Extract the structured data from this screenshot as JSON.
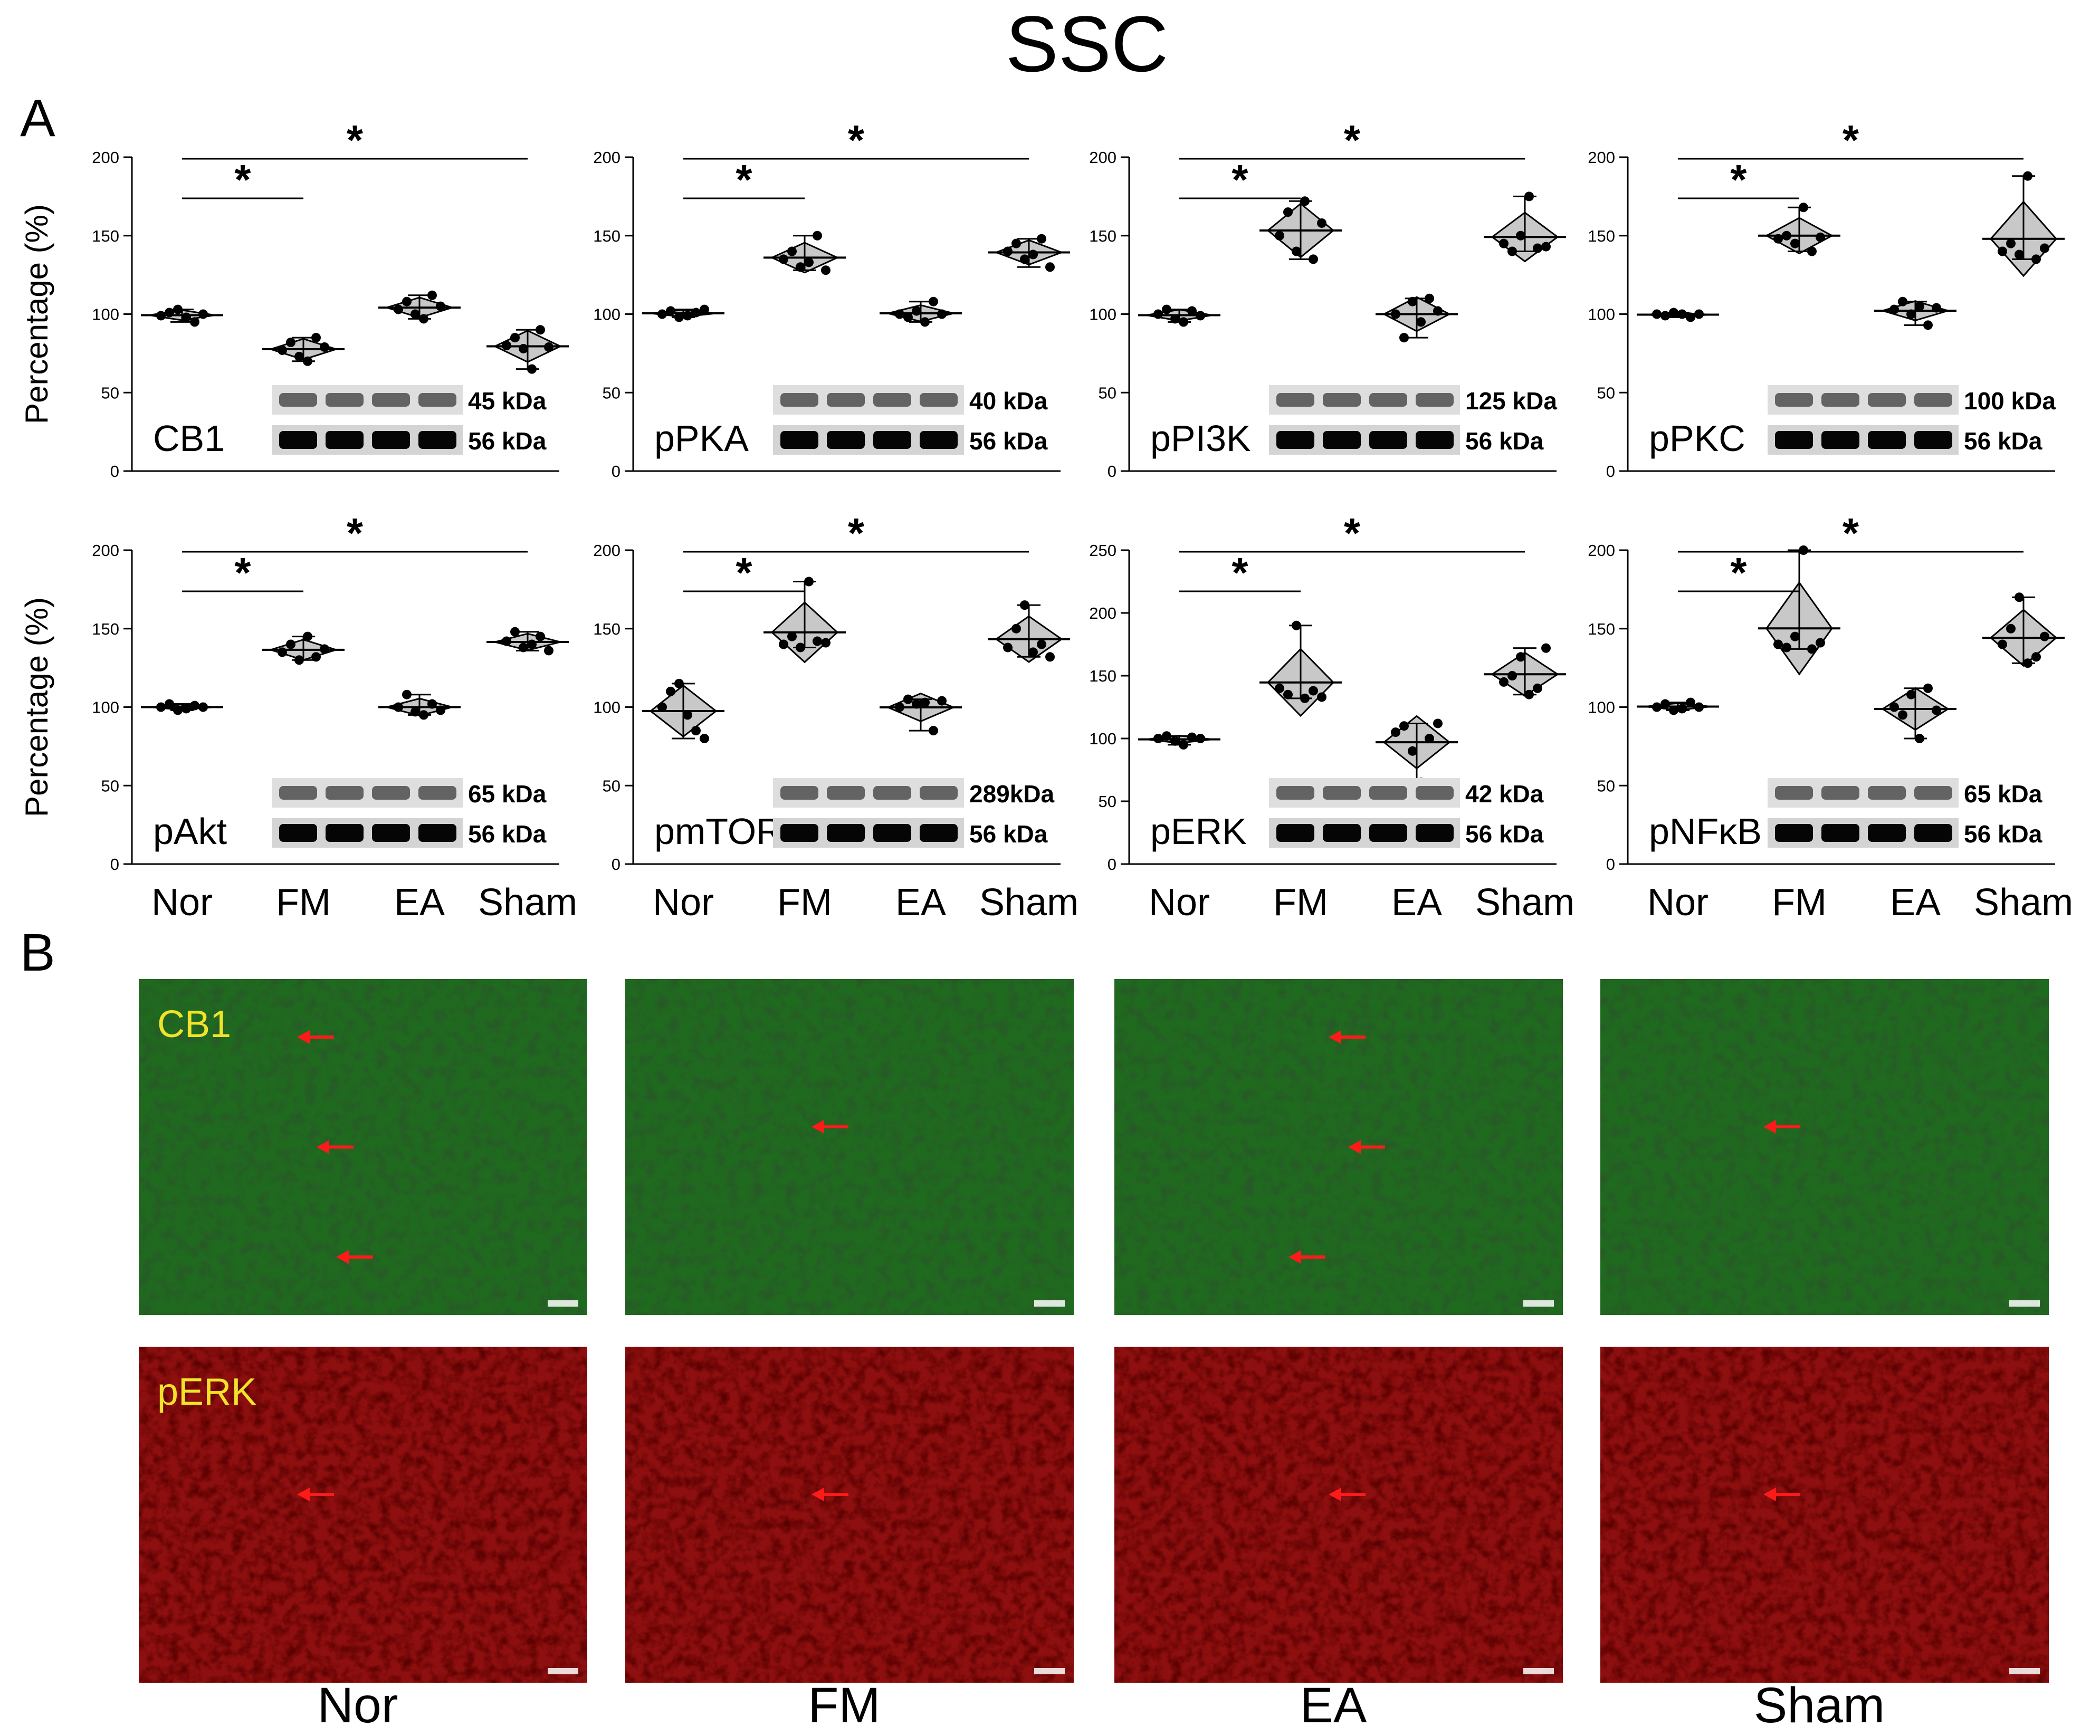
{
  "figure_title": "SSC",
  "panel_labels": {
    "a": "A",
    "b": "B"
  },
  "ylabel": "Percentage (%)",
  "groups": [
    "Nor",
    "FM",
    "EA",
    "Sham"
  ],
  "colors": {
    "axis": "#000000",
    "violin_fill": "#c8c8c8",
    "green_stain": "#1f6a1f",
    "red_stain": "#8e0f0f",
    "arrow": "#ff1a1a",
    "stain_label": "#f0e32a"
  },
  "chart_data": [
    {
      "type": "violin",
      "name": "CB1",
      "ylim": [
        0,
        200
      ],
      "yticks": [
        0,
        50,
        100,
        150,
        200
      ],
      "categories": [
        "Nor",
        "FM",
        "EA",
        "Sham"
      ],
      "values": [
        [
          99,
          101,
          103,
          98,
          95,
          100
        ],
        [
          77,
          82,
          73,
          70,
          85,
          79
        ],
        [
          103,
          108,
          100,
          97,
          112,
          105
        ],
        [
          80,
          85,
          78,
          65,
          90,
          79
        ]
      ],
      "bands": [
        "45 kDa",
        "56 kDa"
      ],
      "significance": [
        [
          "Nor",
          "FM",
          "*"
        ],
        [
          "Nor",
          "Sham",
          "*"
        ]
      ]
    },
    {
      "type": "violin",
      "name": "pPKA",
      "ylim": [
        0,
        200
      ],
      "yticks": [
        0,
        50,
        100,
        150,
        200
      ],
      "categories": [
        "Nor",
        "FM",
        "EA",
        "Sham"
      ],
      "values": [
        [
          100,
          102,
          98,
          99,
          101,
          103
        ],
        [
          135,
          140,
          130,
          133,
          150,
          128
        ],
        [
          100,
          98,
          102,
          95,
          108,
          100
        ],
        [
          140,
          145,
          135,
          138,
          148,
          130
        ]
      ],
      "bands": [
        "40 kDa",
        "56 kDa"
      ],
      "significance": [
        [
          "Nor",
          "FM",
          "*"
        ],
        [
          "Nor",
          "Sham",
          "*"
        ]
      ]
    },
    {
      "type": "violin",
      "name": "pPI3K",
      "ylim": [
        0,
        200
      ],
      "yticks": [
        0,
        50,
        100,
        150,
        200
      ],
      "categories": [
        "Nor",
        "FM",
        "EA",
        "Sham"
      ],
      "values": [
        [
          100,
          103,
          97,
          95,
          102,
          99
        ],
        [
          150,
          165,
          140,
          172,
          135,
          158
        ],
        [
          100,
          85,
          108,
          95,
          110,
          102
        ],
        [
          145,
          140,
          150,
          175,
          142,
          143
        ]
      ],
      "bands": [
        "125 kDa",
        "56 kDa"
      ],
      "significance": [
        [
          "Nor",
          "FM",
          "*"
        ],
        [
          "Nor",
          "Sham",
          "*"
        ]
      ]
    },
    {
      "type": "violin",
      "name": "pPKC",
      "ylim": [
        0,
        200
      ],
      "yticks": [
        0,
        50,
        100,
        150,
        200
      ],
      "categories": [
        "Nor",
        "FM",
        "EA",
        "Sham"
      ],
      "values": [
        [
          100,
          99,
          101,
          100,
          98,
          100
        ],
        [
          148,
          150,
          145,
          168,
          140,
          149
        ],
        [
          103,
          108,
          100,
          105,
          93,
          104
        ],
        [
          140,
          145,
          138,
          188,
          135,
          142
        ]
      ],
      "bands": [
        "100 kDa",
        "56 kDa"
      ],
      "significance": [
        [
          "Nor",
          "FM",
          "*"
        ],
        [
          "Nor",
          "Sham",
          "*"
        ]
      ]
    },
    {
      "type": "violin",
      "name": "pAkt",
      "ylim": [
        0,
        200
      ],
      "yticks": [
        0,
        50,
        100,
        150,
        200
      ],
      "categories": [
        "Nor",
        "FM",
        "EA",
        "Sham"
      ],
      "values": [
        [
          100,
          102,
          98,
          99,
          101,
          100
        ],
        [
          135,
          140,
          130,
          145,
          132,
          137
        ],
        [
          100,
          108,
          97,
          95,
          102,
          98
        ],
        [
          142,
          148,
          138,
          140,
          145,
          136
        ]
      ],
      "bands": [
        "65 kDa",
        "56 kDa"
      ],
      "significance": [
        [
          "Nor",
          "FM",
          "*"
        ],
        [
          "Nor",
          "Sham",
          "*"
        ]
      ]
    },
    {
      "type": "violin",
      "name": "pmTOR",
      "ylim": [
        0,
        200
      ],
      "yticks": [
        0,
        50,
        100,
        150,
        200
      ],
      "categories": [
        "Nor",
        "FM",
        "EA",
        "Sham"
      ],
      "values": [
        [
          100,
          110,
          115,
          95,
          85,
          80
        ],
        [
          140,
          145,
          138,
          180,
          142,
          141
        ],
        [
          100,
          105,
          102,
          103,
          85,
          104
        ],
        [
          138,
          150,
          165,
          135,
          140,
          132
        ]
      ],
      "bands": [
        "289kDa",
        "56 kDa"
      ],
      "significance": [
        [
          "Nor",
          "FM",
          "*"
        ],
        [
          "Nor",
          "Sham",
          "*"
        ]
      ]
    },
    {
      "type": "violin",
      "name": "pERK",
      "ylim": [
        0,
        250
      ],
      "yticks": [
        0,
        50,
        100,
        150,
        200,
        250
      ],
      "categories": [
        "Nor",
        "FM",
        "EA",
        "Sham"
      ],
      "values": [
        [
          100,
          102,
          98,
          95,
          101,
          100
        ],
        [
          140,
          135,
          190,
          132,
          138,
          133
        ],
        [
          105,
          110,
          90,
          65,
          100,
          112
        ],
        [
          145,
          150,
          165,
          135,
          140,
          172
        ]
      ],
      "bands": [
        "42 kDa",
        "56 kDa"
      ],
      "significance": [
        [
          "Nor",
          "FM",
          "*"
        ],
        [
          "Nor",
          "Sham",
          "*"
        ]
      ]
    },
    {
      "type": "violin",
      "name": "pNFκB",
      "ylim": [
        0,
        200
      ],
      "yticks": [
        0,
        50,
        100,
        150,
        200
      ],
      "categories": [
        "Nor",
        "FM",
        "EA",
        "Sham"
      ],
      "values": [
        [
          100,
          102,
          98,
          99,
          103,
          100
        ],
        [
          140,
          138,
          145,
          200,
          137,
          141
        ],
        [
          100,
          95,
          108,
          80,
          112,
          98
        ],
        [
          140,
          150,
          170,
          128,
          132,
          145
        ]
      ],
      "bands": [
        "65 kDa",
        "56 kDa"
      ],
      "significance": [
        [
          "Nor",
          "FM",
          "*"
        ],
        [
          "Nor",
          "Sham",
          "*"
        ]
      ]
    }
  ],
  "images": {
    "rows": [
      {
        "stain": "CB1",
        "arrows": [
          [
            3,
            3,
            2
          ],
          [
            1
          ],
          [
            1,
            1,
            1
          ],
          [
            1
          ]
        ]
      },
      {
        "stain": "pERK",
        "arrows": [
          [
            1
          ],
          [
            3
          ],
          [
            1
          ],
          [
            3
          ]
        ]
      }
    ],
    "column_labels": [
      "Nor",
      "FM",
      "EA",
      "Sham"
    ]
  }
}
